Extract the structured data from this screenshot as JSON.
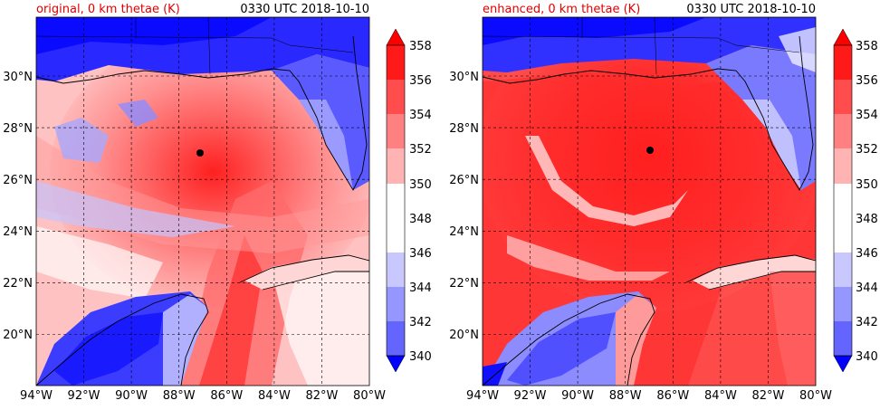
{
  "panels": [
    {
      "title_left": "original, 0 km thetae (K)",
      "title_right": "0330 UTC 2018-10-10",
      "storm_center": {
        "lon": -87.3,
        "lat": 27.0
      }
    },
    {
      "title_left": "enhanced, 0 km thetae (K)",
      "title_right": "0330 UTC 2018-10-10",
      "storm_center": {
        "lon": -87.0,
        "lat": 27.1
      }
    }
  ],
  "axes": {
    "x_ticks": [
      "94°W",
      "92°W",
      "90°W",
      "88°W",
      "86°W",
      "84°W",
      "82°W",
      "80°W"
    ],
    "y_ticks": [
      "20°N",
      "22°N",
      "24°N",
      "26°N",
      "28°N",
      "30°N"
    ],
    "lon_range": [
      -94,
      -80
    ],
    "lat_range": [
      18.1,
      32.1
    ]
  },
  "colorbar": {
    "ticks": [
      "358",
      "356",
      "354",
      "352",
      "350",
      "348",
      "346",
      "344",
      "342",
      "340"
    ],
    "colors_top_to_bottom": [
      "#ff1a1a",
      "#ff4d4d",
      "#ff8080",
      "#ffb3b3",
      "#ffffff",
      "#ffffff",
      "#c8c8ff",
      "#9696ff",
      "#6464ff",
      "#1e1eff"
    ]
  },
  "colors": {
    "title_left": "#e00000",
    "text": "#000000"
  }
}
